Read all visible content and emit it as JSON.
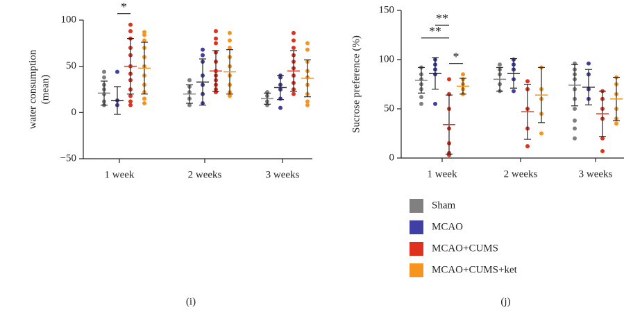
{
  "chart_data": [
    {
      "type": "dot",
      "label": "(i)",
      "ylabel": [
        "water consumption",
        "(mean)"
      ],
      "categories": [
        "1 week",
        "2 weeks",
        "3 weeks"
      ],
      "ylim": [
        -50,
        100
      ],
      "yticks": [
        {
          "value": -50,
          "label": "−50"
        },
        0,
        50,
        100
      ],
      "series": [
        {
          "values": [
            21,
            20,
            15
          ],
          "errors": [
            13,
            10,
            6
          ],
          "points": [
            [
              44,
              38,
              30,
              25,
              20,
              12,
              8
            ],
            [
              35,
              28,
              22,
              15,
              8
            ],
            [
              22,
              18,
              12,
              8
            ]
          ]
        },
        {
          "values": [
            13,
            33,
            27
          ],
          "errors": [
            15,
            25,
            13
          ],
          "points": [
            [
              44,
              13,
              8
            ],
            [
              68,
              62,
              55,
              40,
              30,
              20,
              10
            ],
            [
              40,
              38,
              30,
              25,
              15,
              5
            ]
          ]
        },
        {
          "values": [
            50,
            45,
            45
          ],
          "errors": [
            30,
            22,
            22
          ],
          "points": [
            [
              95,
              88,
              80,
              70,
              62,
              50,
              42,
              35,
              25,
              18,
              12,
              8
            ],
            [
              88,
              80,
              75,
              65,
              55,
              45,
              40,
              35,
              30,
              25,
              22
            ],
            [
              86,
              78,
              70,
              62,
              55,
              48,
              40,
              32,
              25,
              20
            ]
          ]
        },
        {
          "values": [
            48,
            44,
            37
          ],
          "errors": [
            28,
            24,
            20
          ],
          "points": [
            [
              87,
              84,
              78,
              70,
              60,
              50,
              40,
              30,
              22,
              15,
              10
            ],
            [
              86,
              78,
              70,
              60,
              50,
              40,
              30,
              22,
              18
            ],
            [
              75,
              68,
              55,
              45,
              38,
              30,
              20,
              12,
              8
            ]
          ]
        }
      ],
      "annotations": [
        {
          "text": "*",
          "category": 0,
          "between": [
            1,
            2
          ],
          "y": 107
        }
      ]
    },
    {
      "type": "dot",
      "label": "(j)",
      "ylabel": [
        "Sucrose preference (%)"
      ],
      "categories": [
        "1 week",
        "2 weeks",
        "3 weeks"
      ],
      "ylim": [
        0,
        150
      ],
      "yticks": [
        0,
        50,
        100,
        150
      ],
      "series": [
        {
          "values": [
            79,
            80,
            74
          ],
          "errors": [
            13,
            12,
            21
          ],
          "points": [
            [
              92,
              85,
              80,
              75,
              70,
              62,
              55
            ],
            [
              95,
              90,
              85,
              75,
              68
            ],
            [
              96,
              90,
              85,
              80,
              70,
              60,
              50,
              38,
              30,
              20
            ]
          ]
        },
        {
          "values": [
            86,
            86,
            72
          ],
          "errors": [
            16,
            15,
            18
          ],
          "points": [
            [
              100,
              95,
              90,
              85,
              55
            ],
            [
              100,
              95,
              90,
              80,
              68
            ],
            [
              96,
              85,
              70,
              60
            ]
          ]
        },
        {
          "values": [
            34,
            47,
            45
          ],
          "errors": [
            30,
            28,
            23
          ],
          "points": [
            [
              80,
              65,
              50,
              30,
              15,
              5,
              3
            ],
            [
              78,
              70,
              50,
              30,
              12
            ],
            [
              68,
              60,
              50,
              40,
              20,
              7
            ]
          ]
        },
        {
          "values": [
            73,
            64,
            60
          ],
          "errors": [
            8,
            28,
            22
          ],
          "points": [
            [
              85,
              80,
              75,
              70,
              65
            ],
            [
              92,
              70,
              60,
              45,
              25
            ],
            [
              82,
              75,
              65,
              50,
              40,
              35
            ]
          ]
        }
      ],
      "annotations": [
        {
          "text": "**",
          "category": 0,
          "between": [
            0,
            2
          ],
          "y": 122
        },
        {
          "text": "**",
          "category": 0,
          "between": [
            1,
            2
          ],
          "y": 135
        },
        {
          "text": "*",
          "category": 0,
          "between": [
            2,
            3
          ],
          "y": 96
        }
      ]
    }
  ],
  "legend": [
    {
      "name": "Sham",
      "color": "#808080"
    },
    {
      "name": "MCAO",
      "color": "#3f3fa6"
    },
    {
      "name": "MCAO+CUMS",
      "color": "#e0301e"
    },
    {
      "name": "MCAO+CUMS+ket",
      "color": "#f7941d"
    }
  ]
}
